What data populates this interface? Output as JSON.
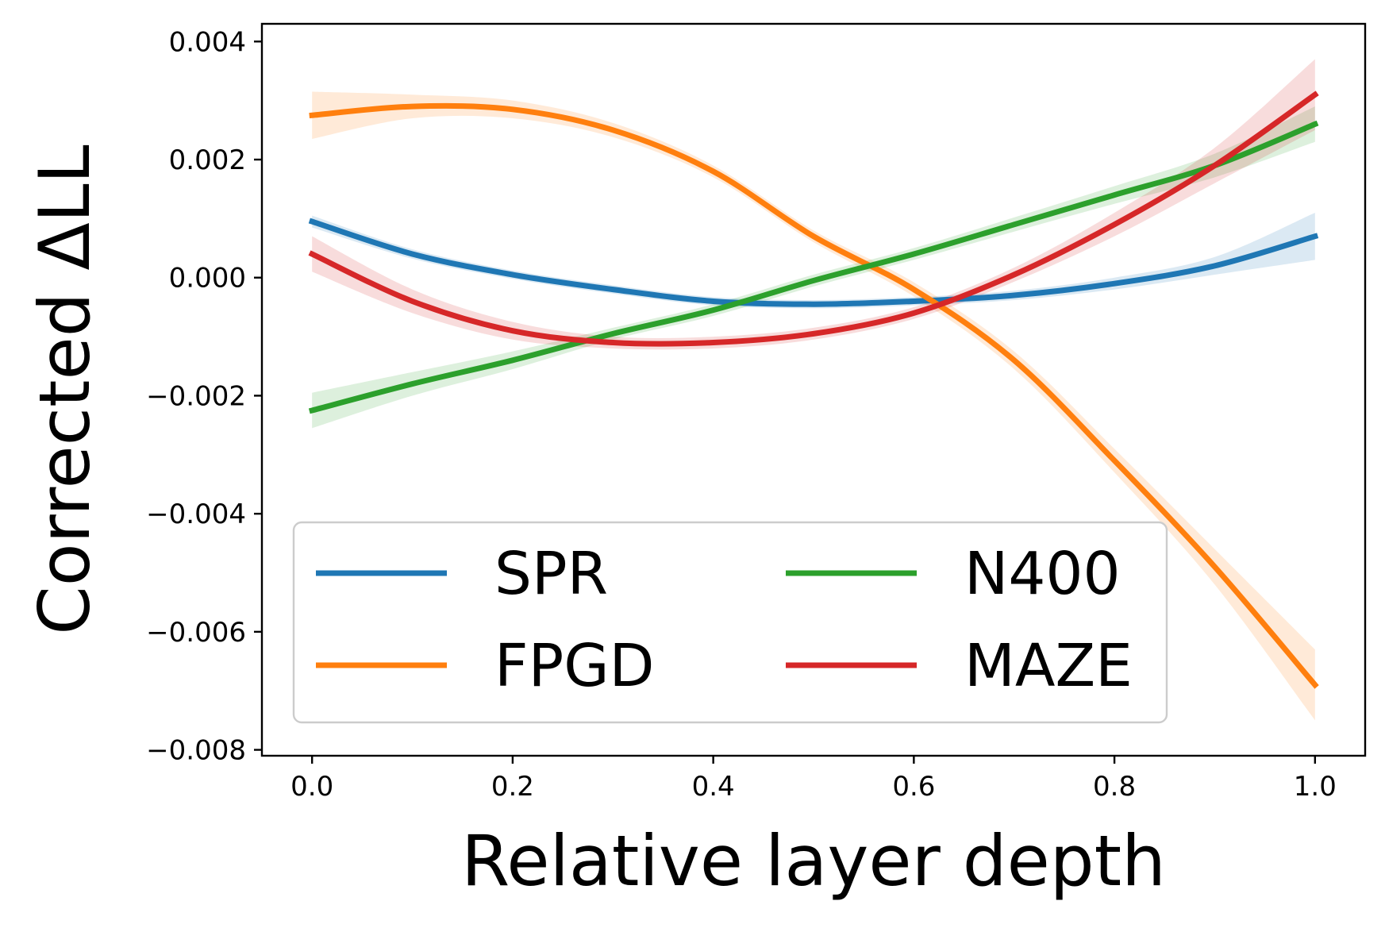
{
  "chart_data": {
    "type": "line",
    "xlabel": "Relative layer depth",
    "ylabel": "Corrected ΔLL",
    "xlim": [
      -0.05,
      1.05
    ],
    "ylim": [
      -0.0081,
      0.0043
    ],
    "xticks": [
      0.0,
      0.2,
      0.4,
      0.6,
      0.8,
      1.0
    ],
    "xtick_labels": [
      "0.0",
      "0.2",
      "0.4",
      "0.6",
      "0.8",
      "1.0"
    ],
    "yticks": [
      0.004,
      0.002,
      0.0,
      -0.002,
      -0.004,
      -0.006,
      -0.008
    ],
    "ytick_labels": [
      "0.004",
      "0.002",
      "0.000",
      "−0.002",
      "−0.004",
      "−0.006",
      "−0.008"
    ],
    "grid": false,
    "legend": {
      "placement": "lower-left",
      "columns": 2
    },
    "x": [
      0.0,
      0.1,
      0.2,
      0.3,
      0.4,
      0.5,
      0.6,
      0.7,
      0.8,
      0.9,
      1.0
    ],
    "series": [
      {
        "name": "SPR",
        "color": "#1f77b4",
        "values": [
          0.00095,
          0.0004,
          5e-05,
          -0.0002,
          -0.0004,
          -0.00045,
          -0.0004,
          -0.0003,
          -0.0001,
          0.0002,
          0.0007
        ],
        "ci_halfwidth": [
          0.0001,
          8e-05,
          7e-05,
          7e-05,
          7e-05,
          7e-05,
          7e-05,
          8e-05,
          0.0001,
          0.00015,
          0.0004
        ]
      },
      {
        "name": "FPGD",
        "color": "#ff7f0e",
        "values": [
          0.00275,
          0.0029,
          0.00285,
          0.0025,
          0.0018,
          0.0007,
          -0.0002,
          -0.0014,
          -0.0031,
          -0.0049,
          -0.0069
        ],
        "ci_halfwidth": [
          0.0004,
          0.0002,
          0.00015,
          0.00012,
          0.0001,
          0.0001,
          0.00012,
          0.00015,
          0.0002,
          0.0003,
          0.0006
        ]
      },
      {
        "name": "N400",
        "color": "#2ca02c",
        "values": [
          -0.00225,
          -0.0018,
          -0.0014,
          -0.00095,
          -0.00055,
          -5e-05,
          0.0004,
          0.0009,
          0.0014,
          0.0019,
          0.0026
        ],
        "ci_halfwidth": [
          0.0003,
          0.0002,
          0.00015,
          0.0001,
          0.0001,
          0.0001,
          0.0001,
          0.00012,
          0.00015,
          0.0002,
          0.0003
        ]
      },
      {
        "name": "MAZE",
        "color": "#d62728",
        "values": [
          0.0004,
          -0.0004,
          -0.0009,
          -0.0011,
          -0.0011,
          -0.00095,
          -0.0006,
          5e-05,
          0.0009,
          0.0019,
          0.0031
        ],
        "ci_halfwidth": [
          0.0003,
          0.0002,
          0.00015,
          0.0001,
          0.0001,
          0.0001,
          0.0001,
          0.00012,
          0.0002,
          0.0003,
          0.0006
        ]
      }
    ]
  }
}
